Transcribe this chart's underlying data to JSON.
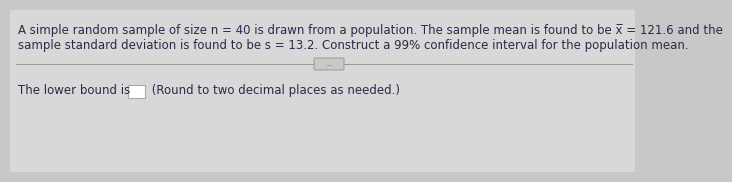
{
  "bg_color": "#c8c8c8",
  "panel_color": "#e8e8e8",
  "line_color": "#999999",
  "text_color": "#2a2a4a",
  "line1": "A simple random sample of size n = 40 is drawn from a population. The sample mean is found to be x̅ = 121.6 and the",
  "line2": "sample standard deviation is found to be s = 13.2. Construct a 99% confidence interval for the population mean.",
  "lower_text": "The lower bound is",
  "round_text": " (Round to two decimal places as needed.)",
  "separator_text": "...",
  "font_size_main": 8.5,
  "box_color": "#ffffff",
  "box_edge_color": "#aaaaaa"
}
